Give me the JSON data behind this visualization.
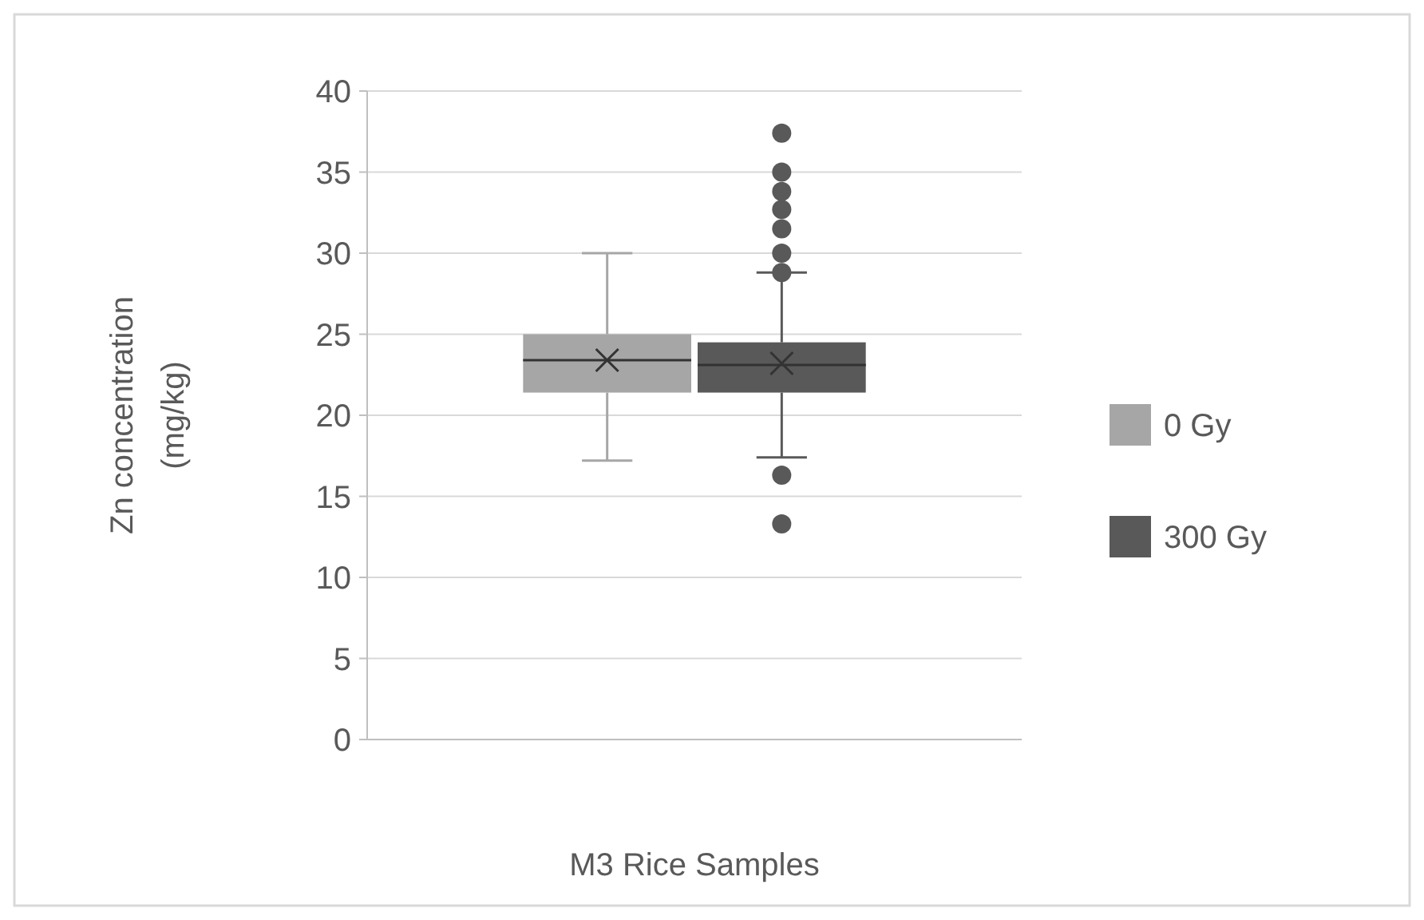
{
  "chart_data": {
    "type": "box",
    "xlabel": "M3 Rice Samples",
    "ylabel": "Zn concentration (mg/kg)",
    "categories": [
      null
    ],
    "series": [
      {
        "name": "0 Gy",
        "color": "#a6a6a6",
        "boxes": [
          {
            "low": 17.2,
            "q1": 21.4,
            "median": 23.4,
            "q3": 25.0,
            "high": 30.0,
            "mean": 23.4
          }
        ]
      },
      {
        "name": "300 Gy",
        "color": "#595959",
        "boxes": [
          {
            "low": 17.4,
            "q1": 21.4,
            "median": 23.1,
            "q3": 24.5,
            "high": 28.8,
            "mean": 23.2,
            "outliers": [
              37.4,
              35.0,
              33.8,
              32.7,
              31.5,
              30.0,
              28.8,
              16.3,
              13.3
            ]
          }
        ]
      }
    ],
    "ylim": [
      0,
      40
    ],
    "yticks": [
      0,
      5,
      10,
      15,
      20,
      25,
      30,
      35,
      40
    ],
    "grid": "y",
    "legend": "right"
  }
}
